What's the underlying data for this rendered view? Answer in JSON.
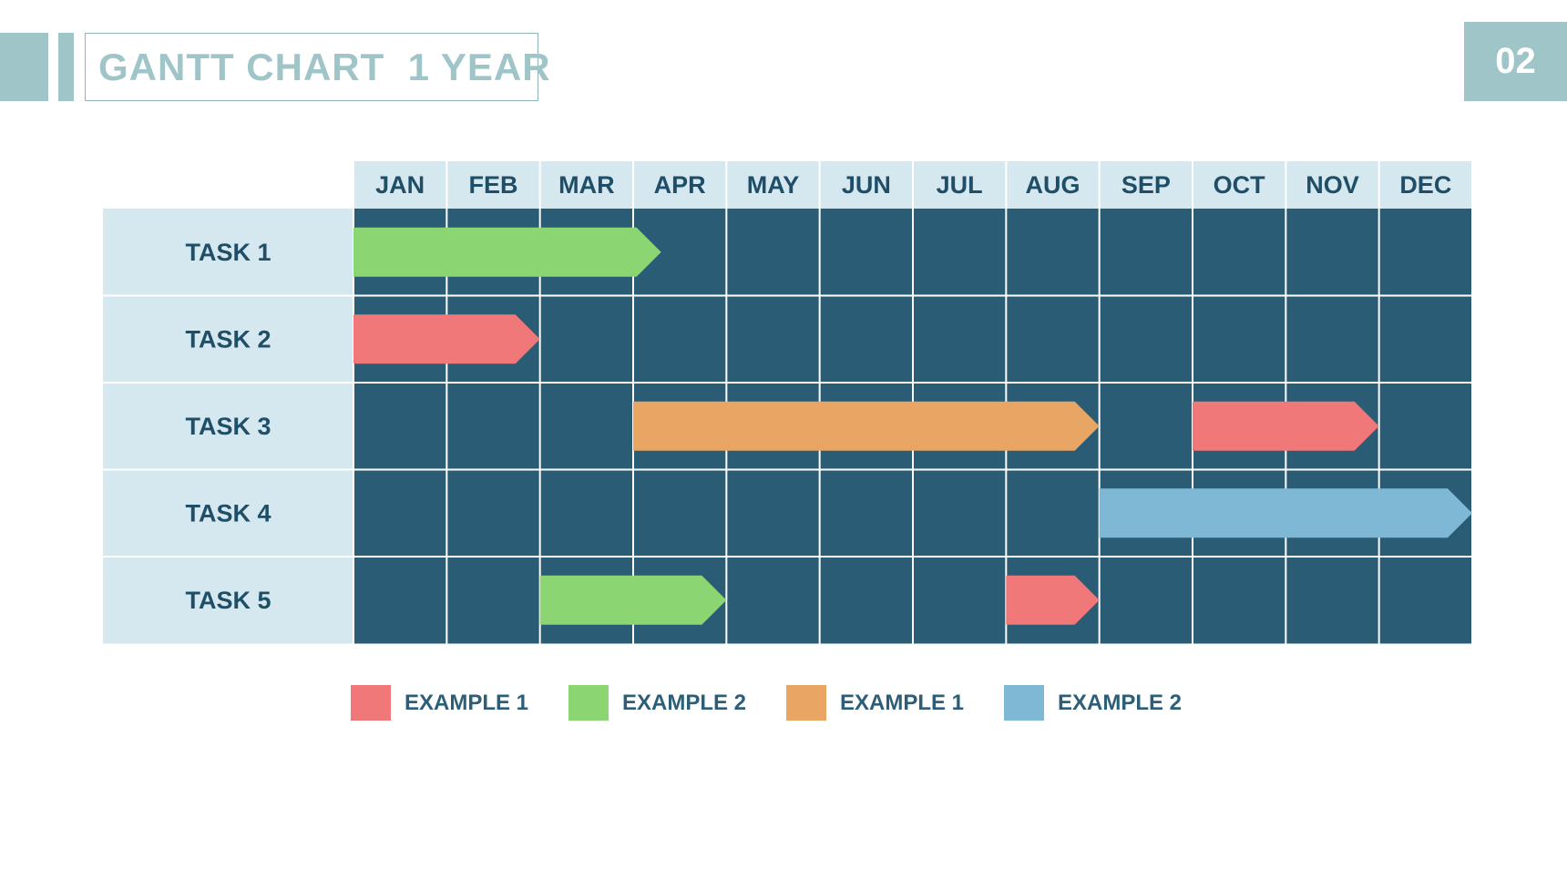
{
  "header": {
    "title": "GANTT CHART  1 YEAR",
    "page_number": "02"
  },
  "colors": {
    "accent": "#9fc5c8",
    "header_bg": "#d5e8ef",
    "grid_bg": "#2a5c76",
    "grid_line": "#ffffff",
    "label_text": "#1f4f68",
    "red": "#f07878",
    "green": "#8bd672",
    "orange": "#e8a564",
    "blue": "#7fb8d4"
  },
  "legend": [
    {
      "label": "EXAMPLE 1",
      "color": "#f07878"
    },
    {
      "label": "EXAMPLE 2",
      "color": "#8bd672"
    },
    {
      "label": "EXAMPLE 1",
      "color": "#e8a564"
    },
    {
      "label": "EXAMPLE 2",
      "color": "#7fb8d4"
    }
  ],
  "chart_data": {
    "type": "gantt",
    "categories": [
      "JAN",
      "FEB",
      "MAR",
      "APR",
      "MAY",
      "JUN",
      "JUL",
      "AUG",
      "SEP",
      "OCT",
      "NOV",
      "DEC"
    ],
    "tasks": [
      "TASK 1",
      "TASK 2",
      "TASK 3",
      "TASK 4",
      "TASK 5"
    ],
    "bars": [
      {
        "task": 0,
        "start": 0,
        "end": 3.3,
        "color": "#8bd672"
      },
      {
        "task": 1,
        "start": 0,
        "end": 2.0,
        "color": "#f07878"
      },
      {
        "task": 2,
        "start": 3,
        "end": 8.0,
        "color": "#e8a564"
      },
      {
        "task": 2,
        "start": 9,
        "end": 11.0,
        "color": "#f07878"
      },
      {
        "task": 3,
        "start": 8,
        "end": 12.0,
        "color": "#7fb8d4"
      },
      {
        "task": 4,
        "start": 2,
        "end": 4.0,
        "color": "#8bd672"
      },
      {
        "task": 4,
        "start": 7,
        "end": 8.0,
        "color": "#f07878"
      }
    ]
  }
}
